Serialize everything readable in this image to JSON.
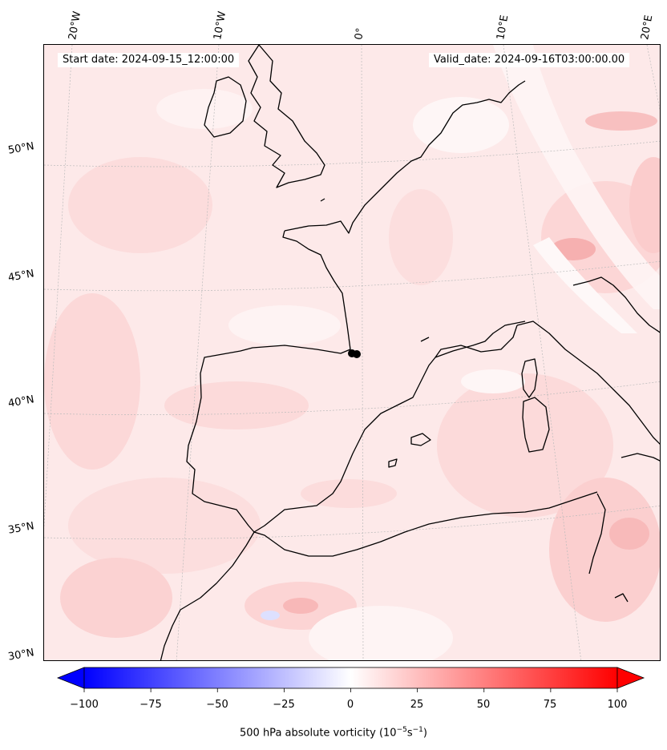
{
  "header": {
    "start_date": "Start date: 2024-09-15_12:00:00",
    "valid_date": "Valid_date: 2024-09-16T03:00:00.00"
  },
  "longitude_labels": [
    "20°W",
    "10°W",
    "0°",
    "10°E",
    "20°E"
  ],
  "latitude_labels": [
    "50°N",
    "45°N",
    "40°N",
    "35°N",
    "30°N"
  ],
  "colorbar": {
    "ticks": [
      "−100",
      "−75",
      "−50",
      "−25",
      "0",
      "25",
      "50",
      "75",
      "100"
    ],
    "range": [
      -100,
      100
    ],
    "extend": "both",
    "cmap": "bwr",
    "label_main": "500 hPa absolute vorticity (10",
    "label_exp1": "−5",
    "label_mid": "s",
    "label_exp2": "−1",
    "label_end": ")"
  },
  "colors": {
    "negative_end": "#0000ff",
    "neutral": "#ffffff",
    "positive_end": "#ff0000",
    "background_field": "#fde9e9",
    "coastline": "#000000"
  },
  "map": {
    "field": "500 hPa absolute vorticity",
    "region": "Western Europe, Iberian Peninsula, Western Mediterranean, NW Africa",
    "field_range_observed": [
      -10,
      25
    ],
    "marker_location": "SW France near 42°N 0°",
    "gridlines": true
  }
}
